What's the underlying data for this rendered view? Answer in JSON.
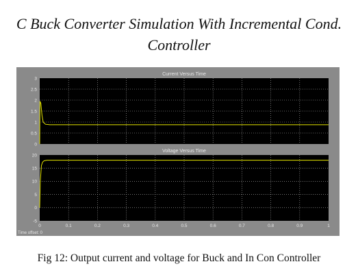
{
  "page": {
    "heading_line1": "C Buck Converter Simulation With Incremental Cond.",
    "heading_line2": "Controller",
    "caption": "Fig 12: Output current and voltage for Buck and In Con Controller"
  },
  "colors": {
    "scope_bg": "#8a8a8a",
    "plot_bg": "#000000",
    "trace": "#e6e600",
    "grid": "#bdbdbd"
  },
  "chart_data": [
    {
      "type": "line",
      "title": "Current Versus Time",
      "xlim": [
        0,
        1
      ],
      "ylim": [
        0,
        3
      ],
      "xticks": [
        "0",
        "0.1",
        "0.2",
        "0.3",
        "0.4",
        "0.5",
        "0.6",
        "0.7",
        "0.8",
        "0.9",
        "1"
      ],
      "yticks": [
        "0",
        "0.5",
        "1",
        "1.5",
        "2",
        "2.5",
        "3"
      ],
      "grid": true,
      "series": [
        {
          "x": [
            0,
            0.001,
            0.004,
            0.008,
            0.012,
            0.02,
            0.035,
            1
          ],
          "y": [
            0,
            1.95,
            1.85,
            1.3,
            1.0,
            0.9,
            0.88,
            0.88
          ]
        }
      ]
    },
    {
      "type": "line",
      "title": "Voltage Versus Time",
      "xlim": [
        0,
        1
      ],
      "ylim": [
        -5,
        20
      ],
      "xticks": [
        "0",
        "0.1",
        "0.2",
        "0.3",
        "0.4",
        "0.5",
        "0.6",
        "0.7",
        "0.8",
        "0.9",
        "1"
      ],
      "yticks": [
        "-5",
        "0",
        "5",
        "10",
        "15",
        "20"
      ],
      "grid": true,
      "series": [
        {
          "x": [
            0,
            0.002,
            0.006,
            0.01,
            0.015,
            0.025,
            1
          ],
          "y": [
            0,
            10,
            16,
            17.3,
            17.8,
            18,
            18
          ]
        }
      ]
    }
  ],
  "time_offset_label": "Time offset:  0"
}
